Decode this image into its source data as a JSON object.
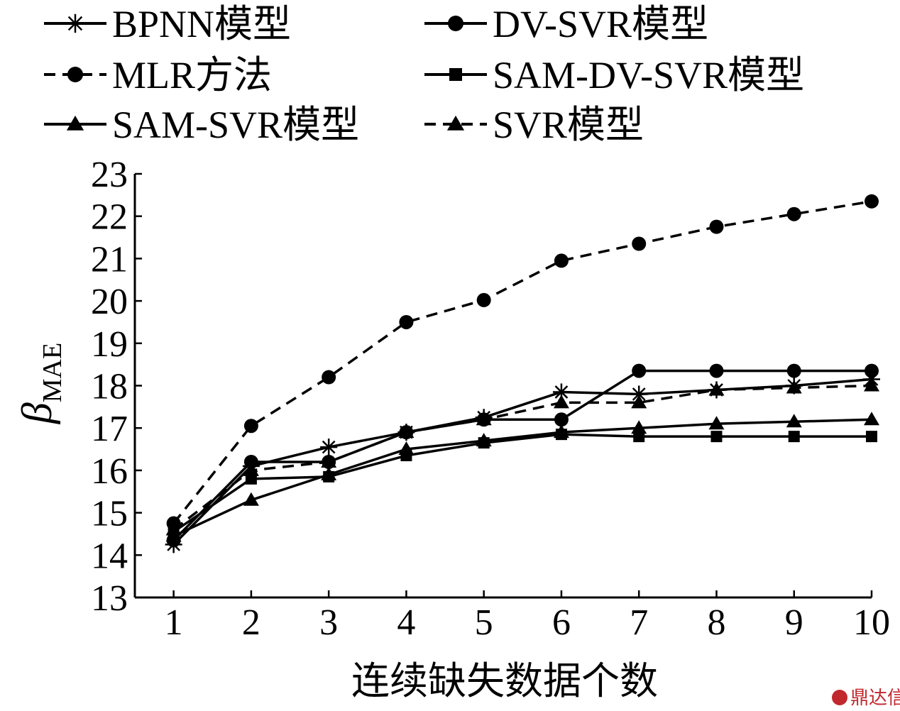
{
  "chart_data": {
    "type": "line",
    "title": "",
    "xlabel": "连续缺失数据个数",
    "ylabel_symbol": "β",
    "ylabel_subscript": "MAE",
    "x": [
      1,
      2,
      3,
      4,
      5,
      6,
      7,
      8,
      9,
      10
    ],
    "xlim": [
      0.5,
      10
    ],
    "ylim": [
      13,
      23
    ],
    "yticks": [
      13,
      14,
      15,
      16,
      17,
      18,
      19,
      20,
      21,
      22,
      23
    ],
    "xticks": [
      1,
      2,
      3,
      4,
      5,
      6,
      7,
      8,
      9,
      10
    ],
    "grid": false,
    "legend_position": "top",
    "series": [
      {
        "name": "BPNN模型",
        "marker": "star",
        "dash": false,
        "color": "#000000",
        "values": [
          14.25,
          16.1,
          16.55,
          16.9,
          17.25,
          17.85,
          17.8,
          17.9,
          18.0,
          18.15
        ]
      },
      {
        "name": "DV-SVR模型",
        "marker": "circle",
        "dash": false,
        "color": "#000000",
        "values": [
          14.35,
          16.2,
          16.2,
          16.9,
          17.2,
          17.2,
          18.35,
          18.35,
          18.35,
          18.35
        ]
      },
      {
        "name": "MLR方法",
        "marker": "circle",
        "dash": true,
        "color": "#000000",
        "values": [
          14.75,
          17.05,
          18.2,
          19.5,
          20.02,
          20.95,
          21.35,
          21.75,
          22.05,
          22.35
        ]
      },
      {
        "name": "SAM-DV-SVR模型",
        "marker": "square",
        "dash": false,
        "color": "#000000",
        "values": [
          14.55,
          15.8,
          15.85,
          16.35,
          16.65,
          16.85,
          16.8,
          16.8,
          16.8,
          16.8
        ]
      },
      {
        "name": "SAM-SVR模型",
        "marker": "triangle",
        "dash": false,
        "color": "#000000",
        "values": [
          14.45,
          15.3,
          15.9,
          16.5,
          16.7,
          16.9,
          17.0,
          17.1,
          17.15,
          17.2
        ]
      },
      {
        "name": "SVR模型",
        "marker": "triangle",
        "dash": true,
        "color": "#000000",
        "values": [
          14.6,
          16.0,
          16.2,
          16.9,
          17.2,
          17.6,
          17.6,
          17.9,
          17.95,
          18.0
        ]
      }
    ]
  },
  "watermark": {
    "text": "鼎达信",
    "color": "#c0282d"
  }
}
